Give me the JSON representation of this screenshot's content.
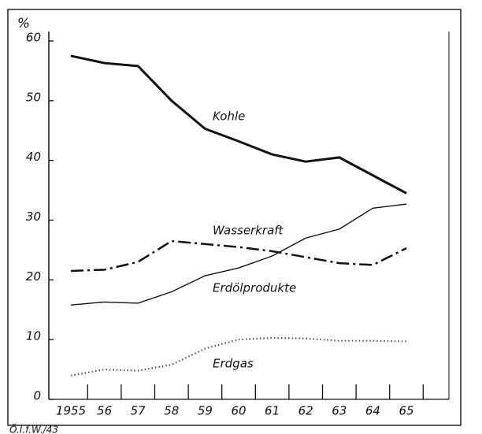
{
  "chart_data": {
    "type": "line",
    "ylabel": "%",
    "categories": [
      "1955",
      "56",
      "57",
      "58",
      "59",
      "60",
      "61",
      "62",
      "63",
      "64",
      "65"
    ],
    "series": [
      {
        "name": "Kohle",
        "color": "#111111",
        "values": [
          57.5,
          56.3,
          55.8,
          50,
          45.3,
          43.2,
          41,
          39.8,
          40.5,
          37.5,
          34.5
        ]
      },
      {
        "name": "Wasserkraft",
        "color": "#111111",
        "values": [
          21.5,
          21.7,
          23,
          26.5,
          26,
          25.5,
          24.8,
          23.8,
          22.8,
          22.5,
          25.3
        ]
      },
      {
        "name": "Erdölprodukte",
        "color": "#111111",
        "values": [
          15.8,
          16.3,
          16.1,
          18,
          20.7,
          22,
          24,
          27,
          28.5,
          32,
          32.7
        ]
      },
      {
        "name": "Erdgas",
        "color": "#555555",
        "values": [
          4,
          5,
          4.8,
          5.8,
          8.5,
          10,
          10.3,
          10.2,
          9.8,
          9.8,
          9.7
        ]
      }
    ],
    "ylim": [
      0,
      60
    ],
    "yticks": [
      0,
      10,
      20,
      30,
      40,
      50,
      60
    ],
    "source": "Ö.I.f.W./43"
  }
}
